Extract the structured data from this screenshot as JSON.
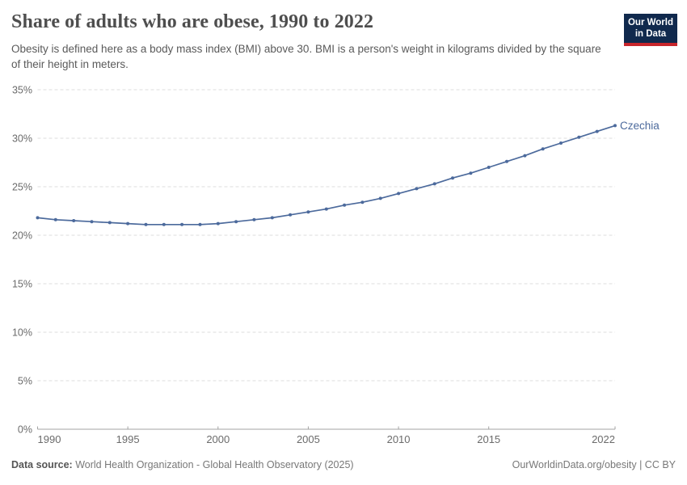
{
  "header": {
    "title": "Share of adults who are obese, 1990 to 2022",
    "subtitle": "Obesity is defined here as a body mass index (BMI) above 30. BMI is a person's weight in kilograms divided by the square of their height in meters.",
    "logo": {
      "line1": "Our World",
      "line2": "in Data",
      "bg_color": "#10294d",
      "stripe_color": "#c7252b"
    }
  },
  "chart_data": {
    "type": "line",
    "title": "Share of adults who are obese, 1990 to 2022",
    "xlabel": "",
    "ylabel": "",
    "xlim": [
      1990,
      2022
    ],
    "ylim": [
      0,
      35
    ],
    "grid": "horizontal-dashed",
    "legend_position": "end-of-line-label",
    "x_ticks": [
      1990,
      1995,
      2000,
      2005,
      2010,
      2015,
      2022
    ],
    "y_ticks": [
      0,
      5,
      10,
      15,
      20,
      25,
      30,
      35
    ],
    "y_tick_suffix": "%",
    "x": [
      1990,
      1991,
      1992,
      1993,
      1994,
      1995,
      1996,
      1997,
      1998,
      1999,
      2000,
      2001,
      2002,
      2003,
      2004,
      2005,
      2006,
      2007,
      2008,
      2009,
      2010,
      2011,
      2012,
      2013,
      2014,
      2015,
      2016,
      2017,
      2018,
      2019,
      2020,
      2021,
      2022
    ],
    "series": [
      {
        "name": "Czechia",
        "color": "#4c6a9c",
        "values": [
          21.8,
          21.6,
          21.5,
          21.4,
          21.3,
          21.2,
          21.1,
          21.1,
          21.1,
          21.1,
          21.2,
          21.4,
          21.6,
          21.8,
          22.1,
          22.4,
          22.7,
          23.1,
          23.4,
          23.8,
          24.3,
          24.8,
          25.3,
          25.9,
          26.4,
          27.0,
          27.6,
          28.2,
          28.9,
          29.5,
          30.1,
          30.7,
          31.3
        ]
      }
    ],
    "colors": {
      "gridline": "#dedede",
      "axis": "#a3a3a3",
      "tick_label": "#6b6b6b"
    }
  },
  "footer": {
    "datasource_label": "Data source:",
    "datasource_text": " World Health Organization - Global Health Observatory (2025)",
    "attribution": "OurWorldinData.org/obesity | CC BY"
  }
}
